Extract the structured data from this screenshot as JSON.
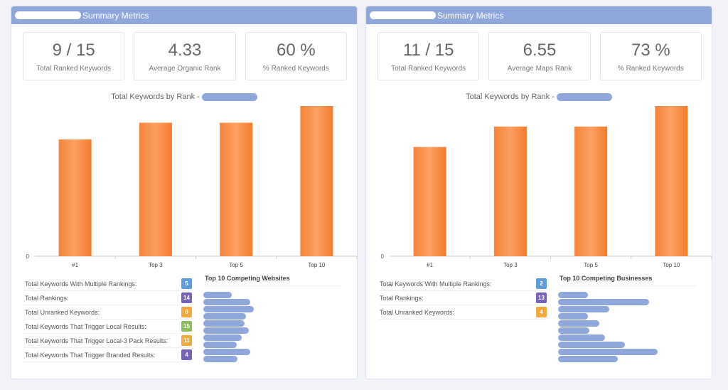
{
  "panels": [
    {
      "header": "Summary Metrics",
      "metrics": [
        {
          "value": "9 / 15",
          "label": "Total Ranked Keywords"
        },
        {
          "value": "4.33",
          "label": "Average Organic Rank"
        },
        {
          "value": "60 %",
          "label": "% Ranked Keywords"
        }
      ],
      "chart_data": {
        "type": "bar",
        "title": "Total Keywords by Rank -",
        "categories": [
          "#1",
          "Top 3",
          "Top 5",
          "Top 10"
        ],
        "values": [
          7,
          8,
          8,
          9
        ],
        "ylim": [
          0,
          9
        ],
        "yticks": [
          "0"
        ],
        "color": "#f58634"
      },
      "stats": [
        {
          "label": "Total Keywords With Multiple Rankings:",
          "value": "5",
          "color": "#5b9de0"
        },
        {
          "label": "Total Rankings:",
          "value": "14",
          "color": "#7862b8"
        },
        {
          "label": "Total Unranked Keywords:",
          "value": "6",
          "color": "#f4a93c"
        },
        {
          "label": "Total Keywords That Trigger Local Results:",
          "value": "15",
          "color": "#8cbf5a"
        },
        {
          "label": "Total Keywords That Trigger Local-3 Pack Results:",
          "value": "11",
          "color": "#f4a93c"
        },
        {
          "label": "Total Keywords That Trigger Branded Results:",
          "value": "4",
          "color": "#7862b8"
        }
      ],
      "competitors_title": "Top 10 Competing Websites"
    },
    {
      "header": "Summary Metrics",
      "metrics": [
        {
          "value": "11 / 15",
          "label": "Total Ranked Keywords"
        },
        {
          "value": "6.55",
          "label": "Average Maps Rank"
        },
        {
          "value": "73 %",
          "label": "% Ranked Keywords"
        }
      ],
      "chart_data": {
        "type": "bar",
        "title": "Total Keywords by Rank -",
        "categories": [
          "#1",
          "Top 3",
          "Top 5",
          "Top 10"
        ],
        "values": [
          8,
          9.5,
          9.5,
          11
        ],
        "ylim": [
          0,
          11
        ],
        "yticks": [
          "0"
        ],
        "color": "#f58634"
      },
      "stats": [
        {
          "label": "Total Keywords With Multiple Rankings:",
          "value": "2",
          "color": "#5b9de0"
        },
        {
          "label": "Total Rankings:",
          "value": "13",
          "color": "#7862b8"
        },
        {
          "label": "Total Unranked Keywords:",
          "value": "4",
          "color": "#f4a93c"
        }
      ],
      "competitors_title": "Top 10 Competing Businesses"
    }
  ]
}
